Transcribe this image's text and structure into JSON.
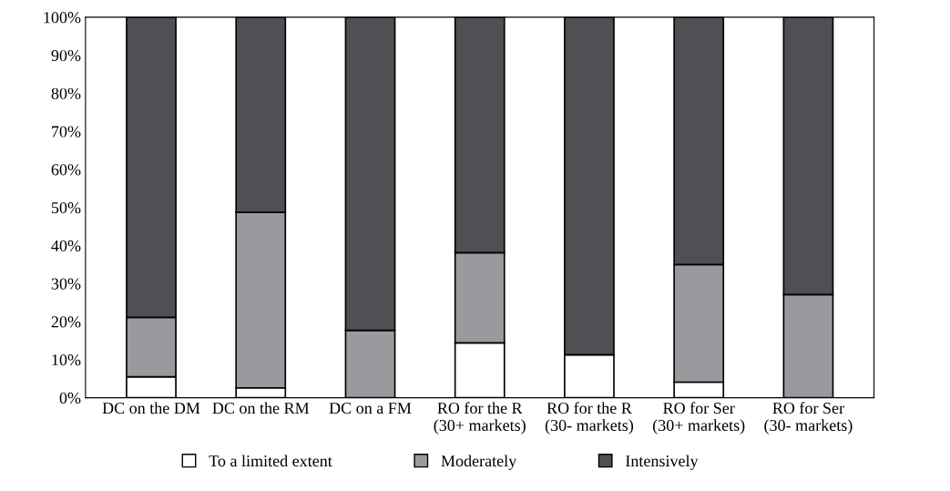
{
  "chart_data": {
    "type": "bar",
    "stacked": true,
    "categories": [
      "DC on the DM",
      "DC on the RM",
      "DC on a FM",
      "RO for the R\n(30+ markets)",
      "RO for the R\n(30- markets)",
      "RO for Ser\n(30+ markets)",
      "RO for Ser\n(30- markets)"
    ],
    "series": [
      {
        "name": "To a limited extent",
        "color": "#ffffff",
        "values": [
          5.5,
          2.6,
          0,
          14.4,
          11.3,
          4.1,
          0
        ]
      },
      {
        "name": "Moderately",
        "color": "#9a9a9e",
        "values": [
          15.6,
          46.1,
          17.7,
          23.7,
          0,
          30.9,
          27.1
        ]
      },
      {
        "name": "Intensively",
        "color": "#505054",
        "values": [
          78.9,
          51.3,
          82.3,
          61.9,
          88.7,
          65.0,
          72.9
        ]
      }
    ],
    "ylim": [
      0,
      100
    ],
    "yticks": [
      {
        "value": 0,
        "label": "0%"
      },
      {
        "value": 10,
        "label": "10%"
      },
      {
        "value": 20,
        "label": "20%"
      },
      {
        "value": 30,
        "label": "30%"
      },
      {
        "value": 40,
        "label": "40%"
      },
      {
        "value": 50,
        "label": "50%"
      },
      {
        "value": 60,
        "label": "60%"
      },
      {
        "value": 70,
        "label": "70%"
      },
      {
        "value": 80,
        "label": "80%"
      },
      {
        "value": 90,
        "label": "90%"
      },
      {
        "value": 100,
        "label": "100%"
      }
    ],
    "grid": false,
    "legend": "bottom"
  }
}
